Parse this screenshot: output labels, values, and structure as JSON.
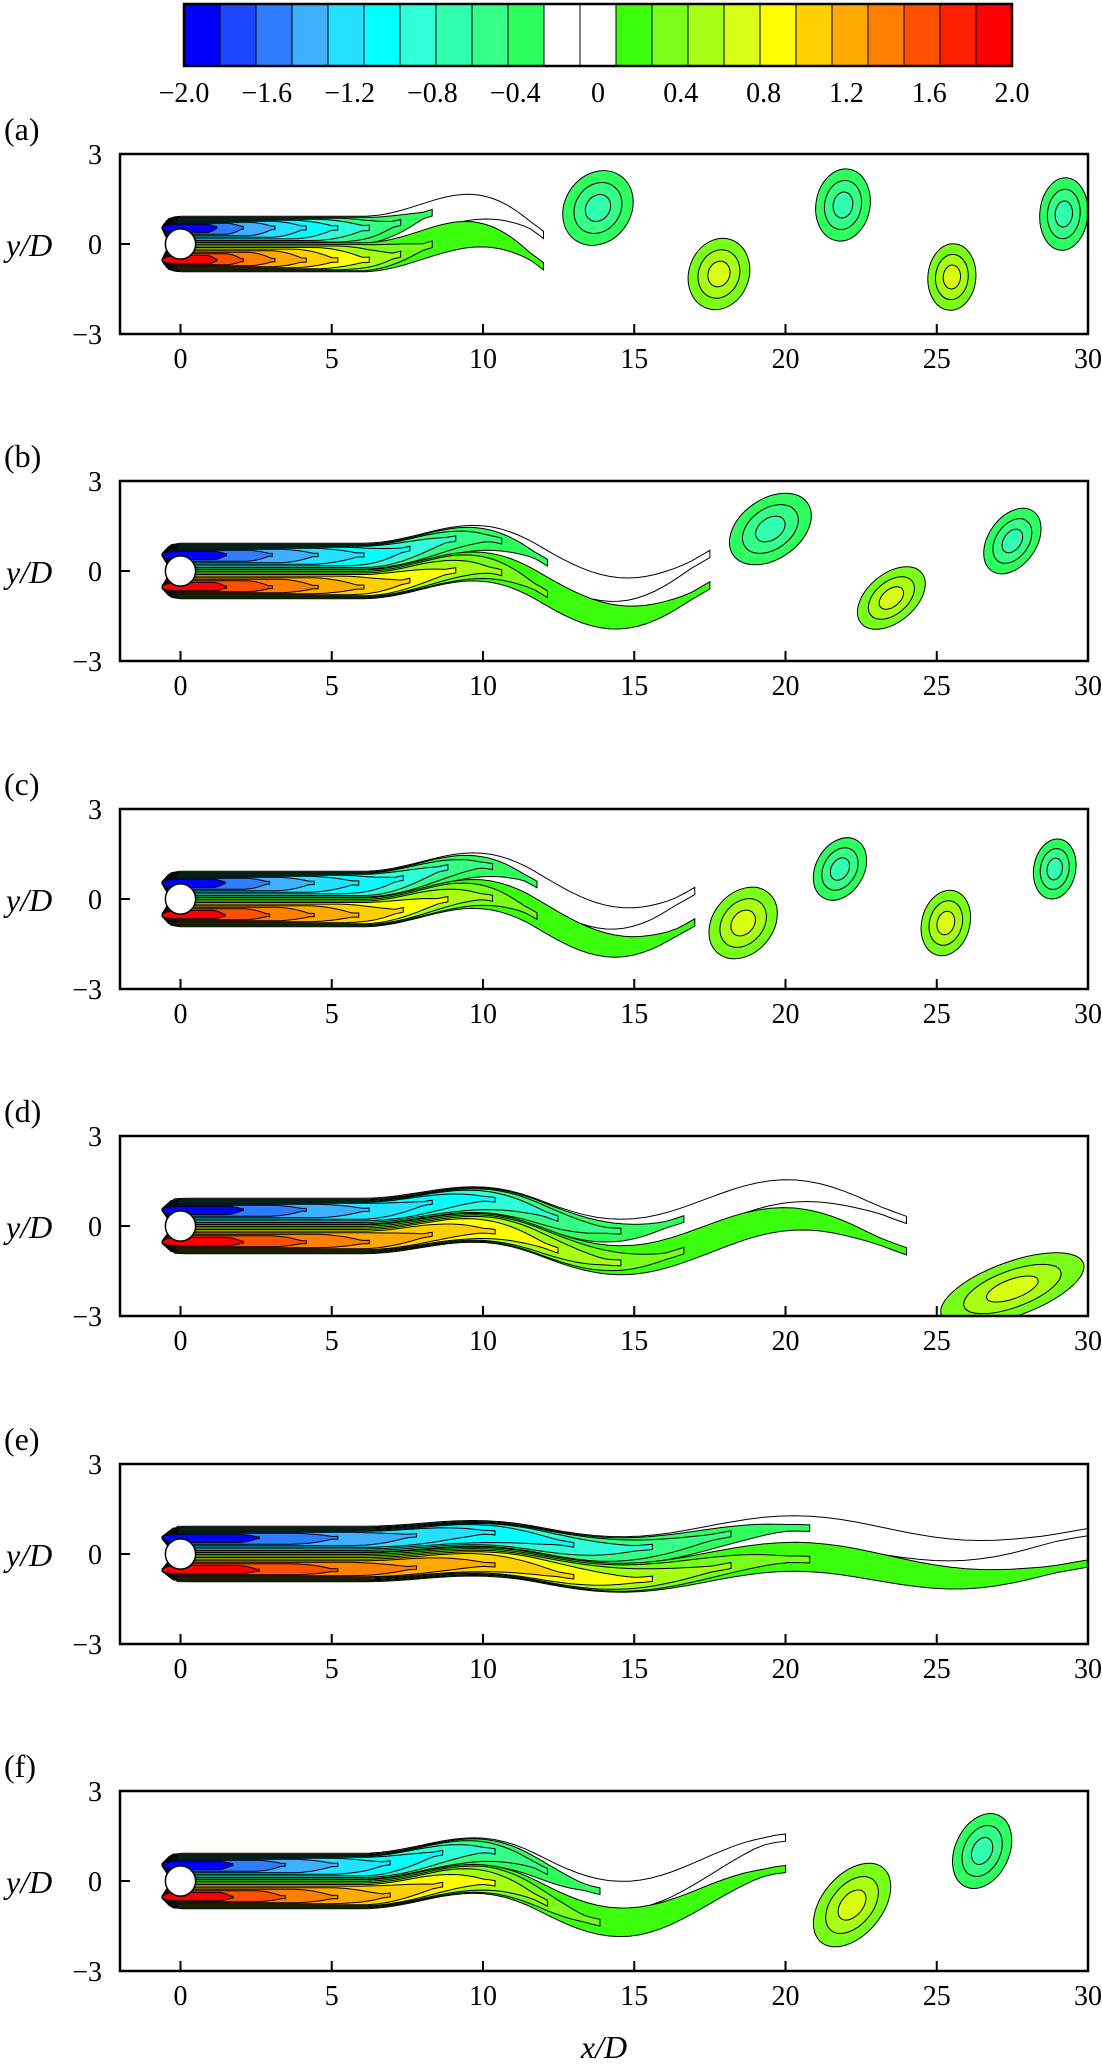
{
  "colorbar": {
    "min": -2.0,
    "max": 2.0,
    "step": 0.2,
    "blank_band": [
      -0.2,
      0.2
    ],
    "tick_labels": [
      "−2.0",
      "−1.6",
      "−1.2",
      "−0.8",
      "−0.4",
      "0",
      "0.4",
      "0.8",
      "1.2",
      "1.6",
      "2.0"
    ],
    "colors": [
      "#0000ff",
      "#1a47ff",
      "#2f7dff",
      "#3fb0ff",
      "#26e0ff",
      "#00ffff",
      "#2fffd9",
      "#33ffb0",
      "#36ff88",
      "#2eff5e",
      "#ffffff",
      "#ffffff",
      "#3cff0e",
      "#7aff1a",
      "#a8ff14",
      "#d8ff14",
      "#ffff00",
      "#ffd000",
      "#ffaa00",
      "#ff8000",
      "#ff5000",
      "#ff2000",
      "#ff0000"
    ]
  },
  "chart_data": {
    "type": "contour",
    "description_free": true,
    "xlim": [
      -2,
      30
    ],
    "ylim": [
      -3,
      3
    ],
    "x_ticks": [
      0,
      5,
      10,
      15,
      20,
      25,
      30
    ],
    "y_ticks": [
      3,
      0,
      -3
    ],
    "x_tick_labels": [
      "0",
      "5",
      "10",
      "15",
      "20",
      "25",
      "30"
    ],
    "y_tick_labels": [
      "3",
      "0",
      "−3"
    ],
    "xlabel": "x/D",
    "ylabel": "y/D",
    "panels": [
      {
        "label": "(a)",
        "shear_end": 12,
        "vortices": [
          {
            "x": 13.8,
            "y": 1.2,
            "sign": 1,
            "rx": 1.3,
            "ry": 1.1,
            "angle": -55
          },
          {
            "x": 17.8,
            "y": -1.0,
            "sign": -1,
            "rx": 1.2,
            "ry": 1.0,
            "angle": -70
          },
          {
            "x": 21.9,
            "y": 1.3,
            "sign": 1,
            "rx": 1.2,
            "ry": 0.9,
            "angle": -80
          },
          {
            "x": 25.5,
            "y": -1.1,
            "sign": -1,
            "rx": 1.1,
            "ry": 0.8,
            "angle": -85
          },
          {
            "x": 29.2,
            "y": 1.0,
            "sign": 1,
            "rx": 1.2,
            "ry": 0.8,
            "angle": -85
          }
        ]
      },
      {
        "label": "(b)",
        "shear_end": 17.5,
        "vortices": [
          {
            "x": 19.5,
            "y": 1.4,
            "sign": 1,
            "rx": 1.5,
            "ry": 1.0,
            "angle": -35
          },
          {
            "x": 23.5,
            "y": -0.9,
            "sign": -1,
            "rx": 1.3,
            "ry": 0.8,
            "angle": -40
          },
          {
            "x": 27.5,
            "y": 1.0,
            "sign": 1,
            "rx": 1.2,
            "ry": 0.8,
            "angle": -55
          }
        ]
      },
      {
        "label": "(c)",
        "shear_end": 17,
        "vortices": [
          {
            "x": 18.6,
            "y": -0.8,
            "sign": -1,
            "rx": 1.3,
            "ry": 1.0,
            "angle": -50
          },
          {
            "x": 21.8,
            "y": 1.0,
            "sign": 1,
            "rx": 1.1,
            "ry": 0.8,
            "angle": -60
          },
          {
            "x": 25.3,
            "y": -0.8,
            "sign": -1,
            "rx": 1.1,
            "ry": 0.8,
            "angle": -75
          },
          {
            "x": 28.9,
            "y": 1.0,
            "sign": 1,
            "rx": 1.0,
            "ry": 0.7,
            "angle": -80
          }
        ]
      },
      {
        "label": "(d)",
        "shear_end": 24,
        "vortices": [
          {
            "x": 27.5,
            "y": -2.1,
            "sign": -1,
            "rx": 2.5,
            "ry": 0.9,
            "angle": -20
          }
        ]
      },
      {
        "label": "(e)",
        "shear_end": 30,
        "vortices": []
      },
      {
        "label": "(f)",
        "shear_end": 20,
        "vortices": [
          {
            "x": 22.2,
            "y": -0.8,
            "sign": -1,
            "rx": 1.6,
            "ry": 1.0,
            "angle": -50
          },
          {
            "x": 26.5,
            "y": 1.0,
            "sign": 1,
            "rx": 1.3,
            "ry": 0.9,
            "angle": -65
          }
        ]
      }
    ]
  }
}
